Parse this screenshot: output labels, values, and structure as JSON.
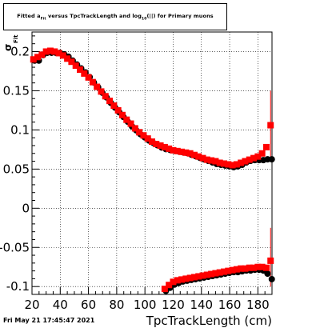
{
  "title": {
    "prefix": "Fitted a",
    "sub1": "Fit",
    "middle": " versus TpcTrackLength and log",
    "sub2": "10",
    "suffix": "(|",
    "tail": "|) for Primary muons"
  },
  "datestamp": "Fri May 21 17:45:47 2021",
  "chart_data": {
    "type": "scatter",
    "xlabel": "TpcTrackLength (cm)",
    "ylabel": "σ_Fit",
    "xlim": [
      20,
      190
    ],
    "ylim": [
      -0.11,
      0.225
    ],
    "x_ticks": [
      20,
      40,
      60,
      80,
      100,
      120,
      140,
      160,
      180
    ],
    "y_ticks": [
      -0.1,
      -0.05,
      0,
      0.05,
      0.1,
      0.15,
      0.2
    ],
    "y_tick_labels": [
      "-0.1",
      "-0.05",
      "0",
      "0.05",
      "0.1",
      "0.15",
      "0.2"
    ],
    "grid": true,
    "series": [
      {
        "color": "#000000",
        "marker": "circle",
        "x": [
          21,
          24,
          27,
          30,
          33,
          36,
          39,
          42,
          45,
          48,
          51,
          54,
          57,
          60,
          63,
          66,
          69,
          72,
          75,
          78,
          81,
          84,
          87,
          90,
          93,
          96,
          99,
          102,
          105,
          108,
          111,
          114,
          117,
          120,
          123,
          126,
          129,
          132,
          135,
          138,
          141,
          144,
          147,
          150,
          153,
          156,
          159,
          162,
          165,
          168,
          171,
          174,
          177,
          180,
          183,
          186,
          189
        ],
        "y": [
          0.19,
          0.19,
          0.197,
          0.2,
          0.2,
          0.2,
          0.2,
          0.198,
          0.195,
          0.19,
          0.185,
          0.18,
          0.175,
          0.169,
          0.162,
          0.156,
          0.149,
          0.143,
          0.136,
          0.13,
          0.124,
          0.118,
          0.112,
          0.106,
          0.101,
          0.096,
          0.092,
          0.088,
          0.085,
          0.082,
          0.079,
          0.077,
          0.076,
          0.075,
          0.074,
          0.073,
          0.072,
          0.07,
          0.068,
          0.066,
          0.064,
          0.062,
          0.06,
          0.058,
          0.057,
          0.056,
          0.055,
          0.054,
          0.055,
          0.057,
          0.06,
          0.062,
          0.063,
          0.063,
          0.063,
          0.064,
          0.064
        ]
      },
      {
        "color": "#ff0000",
        "marker": "square",
        "x": [
          21,
          24,
          27,
          30,
          33,
          36,
          39,
          42,
          45,
          48,
          51,
          54,
          57,
          60,
          63,
          66,
          69,
          72,
          75,
          78,
          81,
          84,
          87,
          90,
          93,
          96,
          99,
          102,
          105,
          108,
          111,
          114,
          117,
          120,
          123,
          126,
          129,
          132,
          135,
          138,
          141,
          144,
          147,
          150,
          153,
          156,
          159,
          162,
          165,
          168,
          171,
          174,
          177,
          180,
          183,
          186,
          189
        ],
        "y": [
          0.19,
          0.193,
          0.196,
          0.2,
          0.201,
          0.2,
          0.198,
          0.195,
          0.191,
          0.187,
          0.182,
          0.177,
          0.172,
          0.167,
          0.161,
          0.155,
          0.149,
          0.143,
          0.137,
          0.131,
          0.125,
          0.119,
          0.113,
          0.108,
          0.102,
          0.097,
          0.093,
          0.089,
          0.085,
          0.082,
          0.08,
          0.078,
          0.076,
          0.074,
          0.073,
          0.072,
          0.071,
          0.07,
          0.068,
          0.066,
          0.064,
          0.062,
          0.061,
          0.06,
          0.058,
          0.057,
          0.056,
          0.055,
          0.056,
          0.058,
          0.06,
          0.062,
          0.064,
          0.066,
          0.07,
          0.078,
          0.106
        ]
      }
    ],
    "series_lower": [
      {
        "color": "#000000",
        "marker": "circle",
        "x": [
          114,
          117,
          120,
          123,
          126,
          129,
          132,
          135,
          138,
          141,
          144,
          147,
          150,
          153,
          156,
          159,
          162,
          165,
          168,
          171,
          174,
          177,
          180,
          183,
          186,
          189
        ],
        "y": [
          -0.104,
          -0.1,
          -0.096,
          -0.094,
          -0.092,
          -0.091,
          -0.09,
          -0.089,
          -0.088,
          -0.087,
          -0.086,
          -0.085,
          -0.084,
          -0.083,
          -0.082,
          -0.081,
          -0.08,
          -0.08,
          -0.079,
          -0.078,
          -0.078,
          -0.077,
          -0.077,
          -0.078,
          -0.082,
          -0.089
        ]
      },
      {
        "color": "#ff0000",
        "marker": "square",
        "x": [
          114,
          117,
          120,
          123,
          126,
          129,
          132,
          135,
          138,
          141,
          144,
          147,
          150,
          153,
          156,
          159,
          162,
          165,
          168,
          171,
          174,
          177,
          180,
          183,
          186,
          189
        ],
        "y": [
          -0.103,
          -0.098,
          -0.094,
          -0.092,
          -0.091,
          -0.09,
          -0.089,
          -0.088,
          -0.087,
          -0.086,
          -0.085,
          -0.084,
          -0.083,
          -0.082,
          -0.081,
          -0.08,
          -0.079,
          -0.078,
          -0.077,
          -0.077,
          -0.076,
          -0.076,
          -0.075,
          -0.075,
          -0.076,
          -0.067
        ]
      }
    ]
  }
}
